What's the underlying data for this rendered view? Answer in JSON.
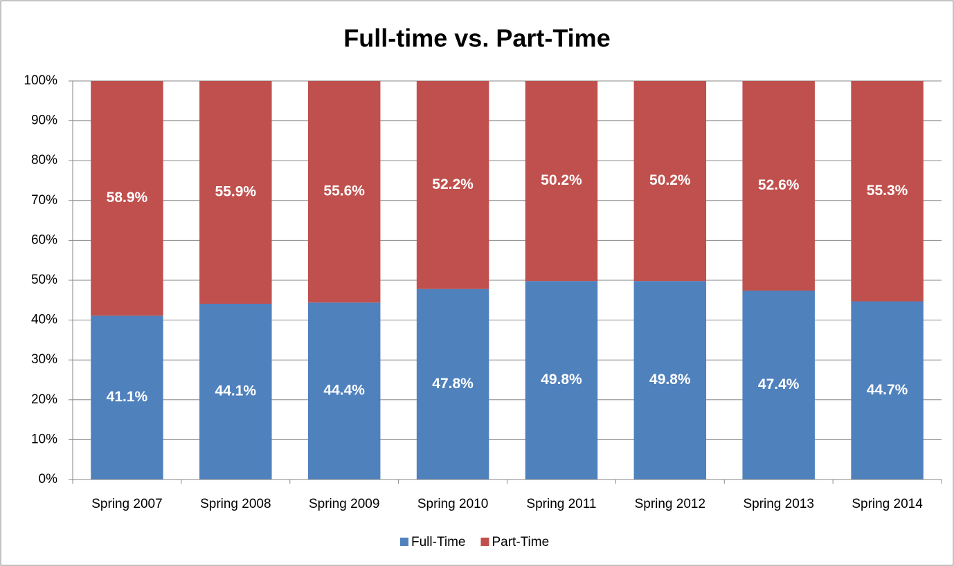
{
  "chart_data": {
    "type": "stacked_bar",
    "title": "Full-time vs. Part-Time",
    "categories": [
      "Spring 2007",
      "Spring 2008",
      "Spring 2009",
      "Spring 2010",
      "Spring 2011",
      "Spring 2012",
      "Spring 2013",
      "Spring 2014"
    ],
    "series": [
      {
        "name": "Full-Time",
        "color": "#4f81bd",
        "values": [
          41.1,
          44.1,
          44.4,
          47.8,
          49.8,
          49.8,
          47.4,
          44.7
        ],
        "value_labels": [
          "41.1%",
          "44.1%",
          "44.4%",
          "47.8%",
          "49.8%",
          "49.8%",
          "47.4%",
          "44.7%"
        ]
      },
      {
        "name": "Part-Time",
        "color": "#c0504d",
        "values": [
          58.9,
          55.9,
          55.6,
          52.2,
          50.2,
          50.2,
          52.6,
          55.3
        ],
        "value_labels": [
          "58.9%",
          "55.9%",
          "55.6%",
          "52.2%",
          "50.2%",
          "50.2%",
          "52.6%",
          "55.3%"
        ]
      }
    ],
    "ylim": [
      0,
      100
    ],
    "yticks": [
      {
        "value": 0,
        "label": "0%"
      },
      {
        "value": 10,
        "label": "10%"
      },
      {
        "value": 20,
        "label": "20%"
      },
      {
        "value": 30,
        "label": "30%"
      },
      {
        "value": 40,
        "label": "40%"
      },
      {
        "value": 50,
        "label": "50%"
      },
      {
        "value": 60,
        "label": "60%"
      },
      {
        "value": 70,
        "label": "70%"
      },
      {
        "value": 80,
        "label": "80%"
      },
      {
        "value": 90,
        "label": "90%"
      },
      {
        "value": 100,
        "label": "100%"
      }
    ],
    "grid": true,
    "legend": "bottom"
  }
}
